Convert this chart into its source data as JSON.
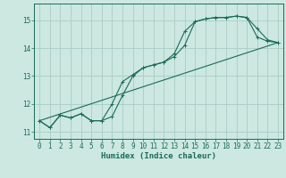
{
  "xlabel": "Humidex (Indice chaleur)",
  "bg_color": "#cce8e0",
  "grid_color": "#aaccc4",
  "line_color": "#1a6b5a",
  "xlim": [
    -0.5,
    23.5
  ],
  "ylim": [
    10.75,
    15.6
  ],
  "yticks": [
    11,
    12,
    13,
    14,
    15
  ],
  "xticks": [
    0,
    1,
    2,
    3,
    4,
    5,
    6,
    7,
    8,
    9,
    10,
    11,
    12,
    13,
    14,
    15,
    16,
    17,
    18,
    19,
    20,
    21,
    22,
    23
  ],
  "line1_x": [
    0,
    1,
    2,
    3,
    4,
    5,
    6,
    7,
    8,
    9,
    10,
    11,
    12,
    13,
    14,
    15,
    16,
    17,
    18,
    19,
    20,
    21,
    22,
    23
  ],
  "line1_y": [
    11.4,
    11.15,
    11.6,
    11.5,
    11.65,
    11.4,
    11.4,
    11.55,
    12.3,
    13.0,
    13.3,
    13.4,
    13.5,
    13.7,
    14.1,
    14.95,
    15.05,
    15.1,
    15.1,
    15.15,
    15.1,
    14.7,
    14.3,
    14.2
  ],
  "line2_x": [
    0,
    1,
    2,
    3,
    4,
    5,
    6,
    7,
    8,
    9,
    10,
    11,
    12,
    13,
    14,
    15,
    16,
    17,
    18,
    19,
    20,
    21,
    22,
    23
  ],
  "line2_y": [
    11.4,
    11.15,
    11.6,
    11.5,
    11.65,
    11.4,
    11.4,
    12.0,
    12.8,
    13.05,
    13.3,
    13.4,
    13.5,
    13.8,
    14.6,
    14.95,
    15.05,
    15.1,
    15.1,
    15.15,
    15.1,
    14.4,
    14.25,
    14.2
  ],
  "line3_x": [
    0,
    23
  ],
  "line3_y": [
    11.4,
    14.2
  ],
  "marker_size": 2.5,
  "line_width": 0.8,
  "tick_fontsize": 5.5,
  "xlabel_fontsize": 6.5
}
